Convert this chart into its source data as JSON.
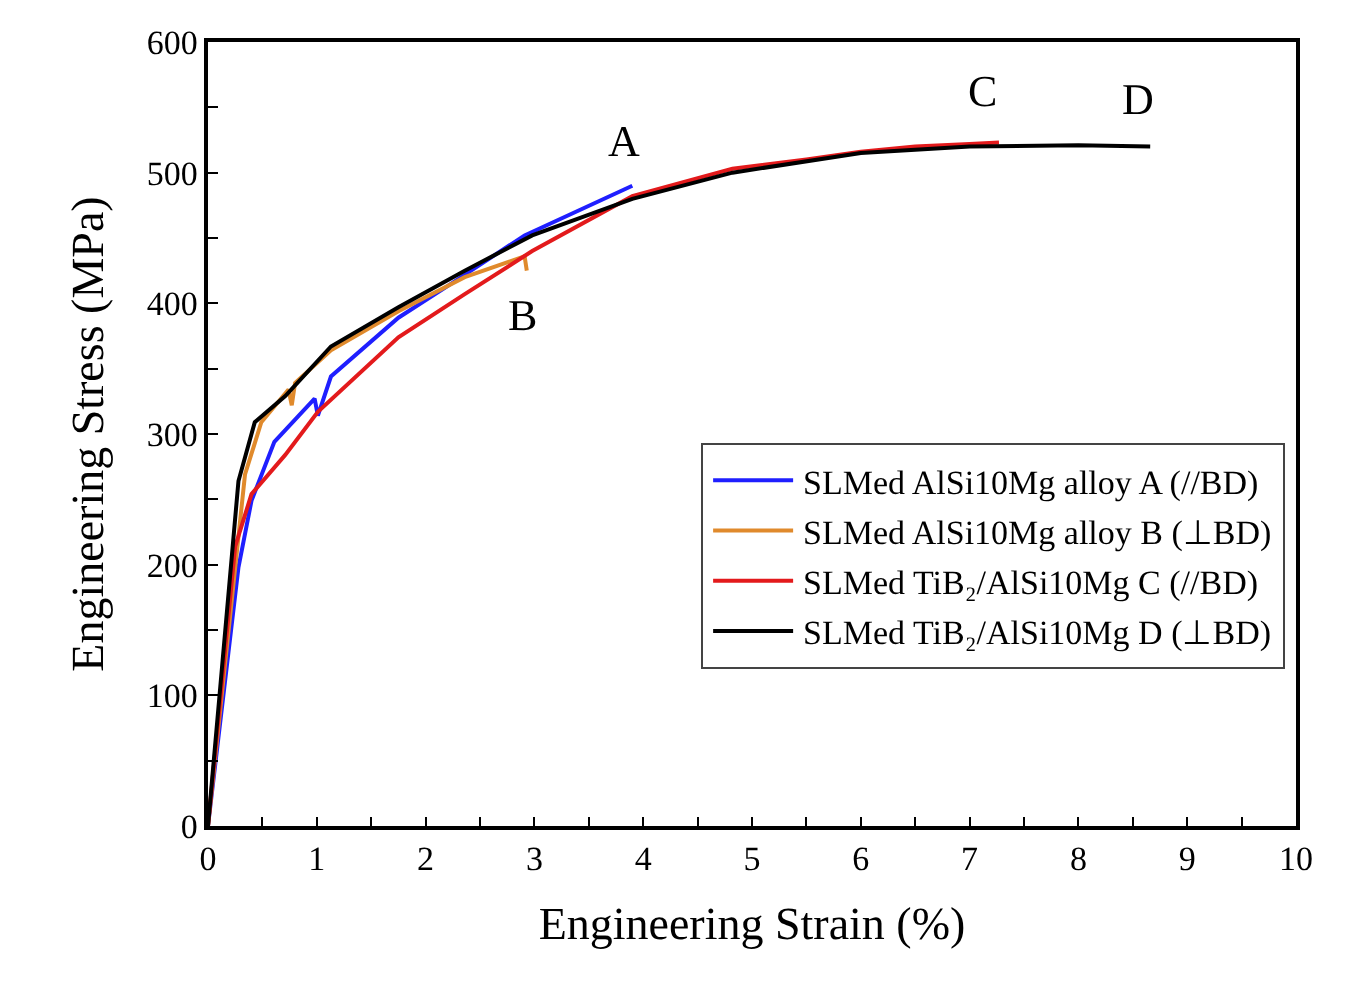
{
  "chart_data": {
    "type": "line",
    "xlabel": "Engineering Strain (%)",
    "ylabel": "Engineering Stress (MPa)",
    "xlim": [
      0,
      10
    ],
    "ylim": [
      0,
      600
    ],
    "xticks": [
      0,
      {
        "value": 0.5,
        "label": null
      },
      1,
      {
        "value": 1.5,
        "label": null
      },
      2,
      {
        "value": 2.5,
        "label": null
      },
      3,
      {
        "value": 3.5,
        "label": null
      },
      4,
      {
        "value": 4.5,
        "label": null
      },
      5,
      {
        "value": 5.5,
        "label": null
      },
      6,
      {
        "value": 6.5,
        "label": null
      },
      7,
      {
        "value": 7.5,
        "label": null
      },
      8,
      {
        "value": 8.5,
        "label": null
      },
      9,
      {
        "value": 9.5,
        "label": null
      },
      10
    ],
    "yticks": [
      0,
      {
        "value": 50,
        "label": null
      },
      100,
      {
        "value": 150,
        "label": null
      },
      200,
      {
        "value": 250,
        "label": null
      },
      300,
      {
        "value": 350,
        "label": null
      },
      400,
      {
        "value": 450,
        "label": null
      },
      500,
      {
        "value": 550,
        "label": null
      },
      600
    ],
    "legend": "bottom right",
    "marker": "none",
    "line_style": "solid",
    "series": [
      {
        "name": "SLMed AlSi10Mg alloy A (//BD)",
        "color": "#1f1fff",
        "x": [
          0,
          0.28,
          0.4,
          0.61,
          0.98,
          1.01,
          1.13,
          1.75,
          2.18,
          2.91,
          3.9
        ],
        "values": [
          0,
          198,
          249,
          294,
          327,
          314,
          344,
          389,
          412,
          452,
          490
        ]
      },
      {
        "name": "SLMed AlSi10Mg alloy B (⊥BD)",
        "color": "#e08a2c",
        "x": [
          0,
          0.34,
          0.49,
          0.74,
          0.77,
          0.8,
          1.13,
          1.75,
          2.36,
          2.91,
          2.93
        ],
        "values": [
          0,
          269,
          309,
          334,
          322,
          339,
          364,
          394,
          420,
          436,
          425
        ]
      },
      {
        "name": "SLMed TiB₂/AlSi10Mg C (//BD)",
        "color": "#e31a1c",
        "x": [
          0,
          0.25,
          0.4,
          0.71,
          1.01,
          1.75,
          2.36,
          2.98,
          3.9,
          4.82,
          5.5,
          6,
          6.5,
          7,
          7.27
        ],
        "values": [
          0,
          214,
          254,
          284,
          317,
          374,
          407,
          440,
          482,
          503,
          510,
          516,
          520,
          522,
          523
        ]
      },
      {
        "name": "SLMed TiB₂/AlSi10Mg D (⊥BD)",
        "color": "#000000",
        "x": [
          0,
          0.28,
          0.43,
          0.71,
          1.13,
          1.75,
          2.36,
          2.98,
          3.9,
          4.82,
          6,
          7,
          8,
          8.66
        ],
        "values": [
          0,
          264,
          309,
          329,
          367,
          397,
          425,
          452,
          480,
          500,
          515,
          520,
          521,
          520
        ]
      }
    ],
    "annotations": [
      "A",
      "B",
      "C",
      "D"
    ]
  }
}
